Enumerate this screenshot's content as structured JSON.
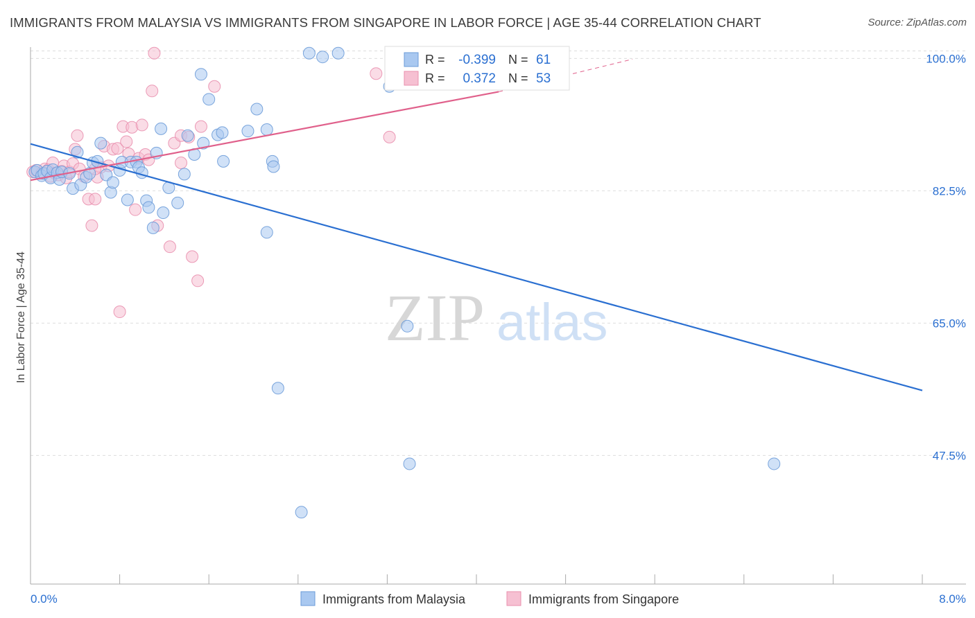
{
  "title": "IMMIGRANTS FROM MALAYSIA VS IMMIGRANTS FROM SINGAPORE IN LABOR FORCE | AGE 35-44 CORRELATION CHART",
  "source": "Source: ZipAtlas.com",
  "watermark": {
    "zip": "ZIP",
    "atlas": "atlas"
  },
  "colors": {
    "malaysia_fill": "#a9c8f0",
    "malaysia_stroke": "#6b9bd8",
    "malaysia_line": "#2a6fd1",
    "singapore_fill": "#f6c0d2",
    "singapore_stroke": "#e98fae",
    "singapore_line": "#e0608b",
    "value_text": "#2a6fd1",
    "grid": "#dddddd"
  },
  "legend_box": {
    "rows": [
      {
        "r_label": "R =",
        "r_value": "-0.399",
        "n_label": "N =",
        "n_value": "61"
      },
      {
        "r_label": "R =",
        "r_value": "0.372",
        "n_label": "N =",
        "n_value": "53"
      }
    ]
  },
  "chart_data": {
    "type": "scatter",
    "title": "IMMIGRANTS FROM MALAYSIA VS IMMIGRANTS FROM SINGAPORE IN LABOR FORCE | AGE 35-44 CORRELATION CHART",
    "xlabel": "",
    "ylabel": "In Labor Force | Age 35-44",
    "xlim": [
      0.0,
      8.0
    ],
    "ylim": [
      30.5,
      101.5
    ],
    "x_tick_labels": [
      "0.0%",
      "8.0%"
    ],
    "y_ticks": [
      47.5,
      65.0,
      82.5,
      100.0
    ],
    "y_tick_labels": [
      "47.5%",
      "65.0%",
      "82.5%",
      "100.0%"
    ],
    "grid": true,
    "legend_position": "bottom-center",
    "series": [
      {
        "name": "Immigrants from Malaysia",
        "color": "#a9c8f0",
        "points": [
          [
            0.04,
            85.0
          ],
          [
            0.06,
            85.2
          ],
          [
            0.1,
            84.5
          ],
          [
            0.12,
            84.8
          ],
          [
            0.15,
            85.1
          ],
          [
            0.18,
            84.2
          ],
          [
            0.2,
            85.3
          ],
          [
            0.24,
            84.9
          ],
          [
            0.26,
            84.0
          ],
          [
            0.28,
            85.0
          ],
          [
            0.35,
            84.8
          ],
          [
            0.38,
            82.8
          ],
          [
            0.42,
            87.6
          ],
          [
            0.45,
            83.3
          ],
          [
            0.5,
            84.3
          ],
          [
            0.53,
            84.8
          ],
          [
            0.56,
            86.2
          ],
          [
            0.6,
            86.4
          ],
          [
            0.63,
            88.8
          ],
          [
            0.68,
            84.6
          ],
          [
            0.72,
            82.3
          ],
          [
            0.74,
            83.6
          ],
          [
            0.8,
            85.2
          ],
          [
            0.82,
            86.3
          ],
          [
            0.87,
            81.3
          ],
          [
            0.9,
            86.3
          ],
          [
            0.95,
            86.3
          ],
          [
            0.97,
            85.6
          ],
          [
            1.0,
            84.9
          ],
          [
            1.04,
            81.2
          ],
          [
            1.06,
            80.3
          ],
          [
            1.1,
            77.6
          ],
          [
            1.13,
            87.5
          ],
          [
            1.17,
            90.7
          ],
          [
            1.19,
            79.6
          ],
          [
            1.24,
            82.9
          ],
          [
            1.32,
            80.9
          ],
          [
            1.38,
            84.7
          ],
          [
            1.41,
            89.8
          ],
          [
            1.47,
            87.3
          ],
          [
            1.55,
            88.8
          ],
          [
            1.53,
            97.9
          ],
          [
            1.6,
            94.6
          ],
          [
            1.68,
            89.9
          ],
          [
            1.72,
            90.2
          ],
          [
            1.73,
            86.4
          ],
          [
            1.95,
            90.4
          ],
          [
            2.03,
            93.3
          ],
          [
            2.12,
            90.6
          ],
          [
            2.17,
            86.4
          ],
          [
            2.18,
            85.7
          ],
          [
            2.12,
            77.0
          ],
          [
            2.22,
            56.4
          ],
          [
            2.5,
            100.7
          ],
          [
            2.62,
            100.2
          ],
          [
            2.76,
            100.7
          ],
          [
            3.22,
            96.3
          ],
          [
            3.38,
            64.6
          ],
          [
            3.4,
            46.4
          ],
          [
            6.67,
            46.4
          ],
          [
            2.43,
            40.0
          ]
        ]
      },
      {
        "name": "Immigrants from Singapore",
        "color": "#f6c0d2",
        "points": [
          [
            0.02,
            85.0
          ],
          [
            0.05,
            85.2
          ],
          [
            0.1,
            84.8
          ],
          [
            0.13,
            85.4
          ],
          [
            0.16,
            85.3
          ],
          [
            0.18,
            84.4
          ],
          [
            0.2,
            86.2
          ],
          [
            0.22,
            84.8
          ],
          [
            0.25,
            84.6
          ],
          [
            0.28,
            85.1
          ],
          [
            0.3,
            85.8
          ],
          [
            0.32,
            84.2
          ],
          [
            0.35,
            85.0
          ],
          [
            0.38,
            86.1
          ],
          [
            0.4,
            88.0
          ],
          [
            0.42,
            89.8
          ],
          [
            0.44,
            85.4
          ],
          [
            0.48,
            84.4
          ],
          [
            0.52,
            81.4
          ],
          [
            0.55,
            77.9
          ],
          [
            0.58,
            81.4
          ],
          [
            0.6,
            84.3
          ],
          [
            0.63,
            85.6
          ],
          [
            0.66,
            88.4
          ],
          [
            0.7,
            85.8
          ],
          [
            0.74,
            88.0
          ],
          [
            0.78,
            88.1
          ],
          [
            0.8,
            66.5
          ],
          [
            0.83,
            91.0
          ],
          [
            0.86,
            89.0
          ],
          [
            0.88,
            87.4
          ],
          [
            0.91,
            90.9
          ],
          [
            0.94,
            80.0
          ],
          [
            0.97,
            86.8
          ],
          [
            1.0,
            91.2
          ],
          [
            1.03,
            87.3
          ],
          [
            1.06,
            86.6
          ],
          [
            1.09,
            95.7
          ],
          [
            1.11,
            100.7
          ],
          [
            1.14,
            77.9
          ],
          [
            1.25,
            75.1
          ],
          [
            1.29,
            88.8
          ],
          [
            1.35,
            89.8
          ],
          [
            1.42,
            89.6
          ],
          [
            1.45,
            73.8
          ],
          [
            1.5,
            70.6
          ],
          [
            1.53,
            91.0
          ],
          [
            1.65,
            96.3
          ],
          [
            3.1,
            98.0
          ],
          [
            3.22,
            89.6
          ],
          [
            3.52,
            100.6
          ],
          [
            1.35,
            86.2
          ],
          [
            0.58,
            85.4
          ]
        ]
      }
    ],
    "trend_lines": [
      {
        "series": "Immigrants from Malaysia",
        "x": [
          0.0,
          8.0
        ],
        "y": [
          88.7,
          56.1
        ],
        "style": "solid"
      },
      {
        "series": "Immigrants from Singapore",
        "x": [
          0.0,
          4.2
        ],
        "y": [
          83.9,
          95.6
        ],
        "style": "solid"
      },
      {
        "series": "Immigrants from Singapore",
        "x": [
          4.2,
          5.4
        ],
        "y": [
          95.6,
          99.9
        ],
        "style": "dashed"
      }
    ]
  },
  "legend": {
    "items": [
      {
        "label": "Immigrants from Malaysia"
      },
      {
        "label": "Immigrants from Singapore"
      }
    ]
  }
}
